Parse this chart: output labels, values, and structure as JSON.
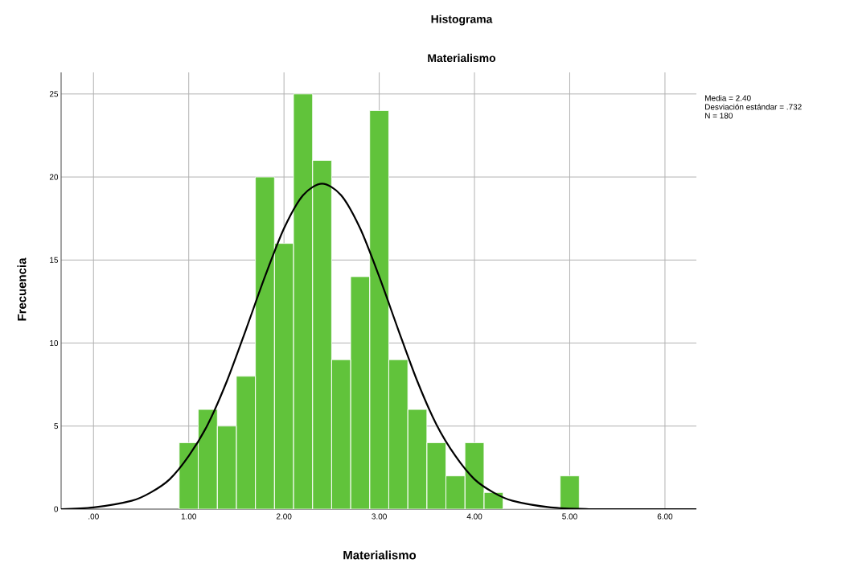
{
  "chart_data": {
    "type": "histogram",
    "title": "Histograma",
    "subtitle": "Materialismo",
    "xlabel": "Materialismo",
    "ylabel": "Frecuencia",
    "bins": [
      0.9,
      1.1,
      1.3,
      1.5,
      1.7,
      1.9,
      2.1,
      2.3,
      2.5,
      2.7,
      2.9,
      3.1,
      3.3,
      3.5,
      3.7,
      3.9,
      4.1,
      4.3,
      4.5,
      4.7,
      4.9,
      5.1
    ],
    "values": [
      4,
      6,
      5,
      8,
      20,
      16,
      25,
      21,
      9,
      14,
      24,
      9,
      6,
      4,
      2,
      4,
      1,
      0,
      0,
      0,
      2
    ],
    "color": "#61c33b",
    "series": [
      {
        "type": "line",
        "color": "#000000",
        "x": [
          -0.34,
          0,
          0.4,
          0.6,
          0.8,
          1.0,
          1.2,
          1.4,
          1.6,
          1.8,
          2.0,
          2.2,
          2.4,
          2.6,
          2.8,
          3.0,
          3.2,
          3.4,
          3.6,
          3.8,
          4.0,
          4.2,
          4.4,
          4.8,
          5.2,
          5.6,
          6.33
        ],
        "values": [
          0,
          0.1,
          0.5,
          1.0,
          1.8,
          3.2,
          5.1,
          7.7,
          10.8,
          14.0,
          16.9,
          18.9,
          19.6,
          18.9,
          16.9,
          14.0,
          10.8,
          7.7,
          5.1,
          3.2,
          1.8,
          1.0,
          0.5,
          0.1,
          0,
          0,
          0
        ]
      }
    ],
    "xlim": [
      -0.34,
      6.33
    ],
    "ylim": [
      0,
      26.3
    ],
    "xticks": [
      {
        "value": 0,
        "label": ".00"
      },
      {
        "value": 1,
        "label": "1.00"
      },
      {
        "value": 2,
        "label": "2.00"
      },
      {
        "value": 3,
        "label": "3.00"
      },
      {
        "value": 4,
        "label": "4.00"
      },
      {
        "value": 5,
        "label": "5.00"
      },
      {
        "value": 6,
        "label": "6.00"
      }
    ],
    "yticks": [
      0,
      5,
      10,
      15,
      20,
      25
    ],
    "grid": true,
    "marker": "none",
    "annotations": [
      "Media = 2.40",
      "Desviación estándar = .732",
      "N = 180"
    ]
  }
}
